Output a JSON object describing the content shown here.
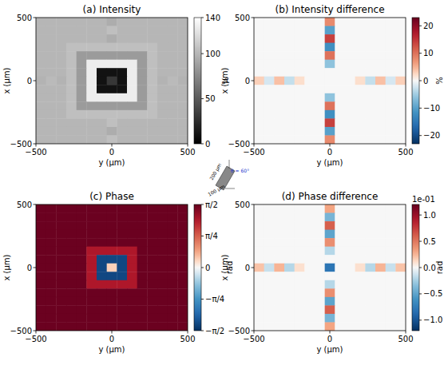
{
  "chart_data": [
    {
      "type": "heatmap",
      "title": "(a) Intensity",
      "x_label": "y (µm)",
      "y_label": "x (µm)",
      "xlim": [
        -500,
        500
      ],
      "ylim": [
        -500,
        500
      ],
      "xticks": [
        {
          "value": -500,
          "label": "−500"
        },
        0,
        500
      ],
      "yticks": [
        {
          "value": -500,
          "label": "−500"
        },
        0,
        500
      ],
      "color": "gray",
      "cells": [
        [
          100,
          100,
          100,
          100,
          100,
          100,
          100,
          95,
          100,
          100,
          100,
          100,
          100,
          100,
          100
        ],
        [
          100,
          100,
          100,
          100,
          100,
          100,
          100,
          105,
          100,
          100,
          100,
          100,
          100,
          100,
          100
        ],
        [
          100,
          100,
          100,
          100,
          100,
          100,
          100,
          95,
          100,
          100,
          100,
          100,
          100,
          100,
          100
        ],
        [
          100,
          100,
          100,
          105,
          105,
          105,
          105,
          105,
          105,
          105,
          105,
          105,
          100,
          100,
          100
        ],
        [
          100,
          100,
          100,
          105,
          85,
          85,
          85,
          85,
          85,
          85,
          85,
          105,
          100,
          100,
          100
        ],
        [
          100,
          100,
          100,
          105,
          85,
          130,
          130,
          130,
          130,
          130,
          85,
          105,
          100,
          100,
          100
        ],
        [
          100,
          100,
          100,
          105,
          85,
          130,
          10,
          10,
          10,
          130,
          85,
          105,
          100,
          100,
          100
        ],
        [
          98,
          102,
          98,
          105,
          85,
          130,
          10,
          30,
          10,
          130,
          85,
          105,
          98,
          102,
          98
        ],
        [
          100,
          100,
          100,
          105,
          85,
          130,
          10,
          10,
          10,
          130,
          85,
          105,
          100,
          100,
          100
        ],
        [
          100,
          100,
          100,
          105,
          85,
          130,
          130,
          130,
          130,
          130,
          85,
          105,
          100,
          100,
          100
        ],
        [
          100,
          100,
          100,
          105,
          85,
          85,
          85,
          85,
          85,
          85,
          85,
          105,
          100,
          100,
          100
        ],
        [
          100,
          100,
          100,
          105,
          105,
          105,
          105,
          105,
          105,
          105,
          105,
          105,
          100,
          100,
          100
        ],
        [
          100,
          100,
          100,
          100,
          100,
          100,
          100,
          105,
          100,
          100,
          100,
          100,
          100,
          100,
          100
        ],
        [
          100,
          100,
          100,
          100,
          100,
          100,
          100,
          95,
          100,
          100,
          100,
          100,
          100,
          100,
          100
        ],
        [
          100,
          100,
          100,
          100,
          100,
          100,
          100,
          105,
          100,
          100,
          100,
          100,
          100,
          100,
          100
        ]
      ],
      "colorbar": {
        "label": "%",
        "range": [
          0,
          140
        ],
        "ticks": [
          0,
          50,
          100,
          140
        ]
      }
    },
    {
      "type": "heatmap",
      "title": "(b) Intensity difference",
      "x_label": "y (µm)",
      "y_label": "x (µm)",
      "xlim": [
        -500,
        500
      ],
      "ylim": [
        -500,
        500
      ],
      "xticks": [
        {
          "value": -500,
          "label": "−500"
        },
        0,
        500
      ],
      "yticks": [
        {
          "value": -500,
          "label": "−500"
        },
        0,
        500
      ],
      "color": "RdBu_r",
      "cells": [
        [
          0,
          0,
          0,
          0,
          0,
          0,
          0,
          8,
          0,
          0,
          0,
          0,
          0,
          0,
          0
        ],
        [
          0,
          0,
          0,
          0,
          0,
          0,
          0,
          -10,
          0,
          0,
          0,
          0,
          0,
          0,
          0
        ],
        [
          0,
          0,
          0,
          0,
          0,
          0,
          0,
          14,
          0,
          0,
          0,
          0,
          0,
          0,
          0
        ],
        [
          0,
          0,
          0,
          0,
          0,
          0,
          0,
          -12,
          0,
          0,
          0,
          0,
          0,
          0,
          0
        ],
        [
          0,
          0,
          0,
          0,
          0,
          0,
          0,
          10,
          0,
          0,
          0,
          0,
          0,
          0,
          0
        ],
        [
          0,
          0,
          0,
          0,
          0,
          0,
          0,
          -6,
          0,
          0,
          0,
          0,
          0,
          0,
          0
        ],
        [
          0,
          0,
          0,
          0,
          0,
          0,
          0,
          0,
          0,
          0,
          0,
          0,
          0,
          0,
          0
        ],
        [
          3,
          -2,
          4,
          -3,
          2,
          0,
          0,
          0,
          0,
          0,
          2,
          -3,
          4,
          -2,
          3
        ],
        [
          0,
          0,
          0,
          0,
          0,
          0,
          0,
          0,
          0,
          0,
          0,
          0,
          0,
          0,
          0
        ],
        [
          0,
          0,
          0,
          0,
          0,
          0,
          0,
          -6,
          0,
          0,
          0,
          0,
          0,
          0,
          0
        ],
        [
          0,
          0,
          0,
          0,
          0,
          0,
          0,
          10,
          0,
          0,
          0,
          0,
          0,
          0,
          0
        ],
        [
          0,
          0,
          0,
          0,
          0,
          0,
          0,
          -12,
          0,
          0,
          0,
          0,
          0,
          0,
          0
        ],
        [
          0,
          0,
          0,
          0,
          0,
          0,
          0,
          14,
          0,
          0,
          0,
          0,
          0,
          0,
          0
        ],
        [
          0,
          0,
          0,
          0,
          0,
          0,
          0,
          -10,
          0,
          0,
          0,
          0,
          0,
          0,
          0
        ],
        [
          0,
          0,
          0,
          0,
          0,
          0,
          0,
          8,
          0,
          0,
          0,
          0,
          0,
          0,
          0
        ]
      ],
      "colorbar": {
        "label": "%",
        "range": [
          -23,
          23
        ],
        "ticks": [
          {
            "value": -20,
            "label": "−20"
          },
          {
            "value": -10,
            "label": "−10"
          },
          0,
          10,
          20
        ]
      }
    },
    {
      "type": "heatmap",
      "title": "(c) Phase",
      "x_label": "y (µm)",
      "y_label": "x (µm)",
      "xlim": [
        -500,
        500
      ],
      "ylim": [
        -500,
        500
      ],
      "xticks": [
        {
          "value": -500,
          "label": "−500"
        },
        0,
        500
      ],
      "yticks": [
        {
          "value": -500,
          "label": "−500"
        },
        0,
        500
      ],
      "color": "RdBu_r",
      "cells": [
        [
          1.55,
          1.55,
          1.55,
          1.55,
          1.55,
          1.55,
          1.55,
          1.55,
          1.55,
          1.55,
          1.55,
          1.55,
          1.55,
          1.55,
          1.55
        ],
        [
          1.55,
          1.55,
          1.55,
          1.55,
          1.55,
          1.55,
          1.55,
          1.55,
          1.55,
          1.55,
          1.55,
          1.55,
          1.55,
          1.55,
          1.55
        ],
        [
          1.55,
          1.55,
          1.55,
          1.55,
          1.55,
          1.55,
          1.55,
          1.55,
          1.55,
          1.55,
          1.55,
          1.55,
          1.55,
          1.55,
          1.55
        ],
        [
          1.55,
          1.55,
          1.55,
          1.55,
          1.55,
          1.55,
          1.55,
          1.55,
          1.55,
          1.55,
          1.55,
          1.55,
          1.55,
          1.55,
          1.55
        ],
        [
          1.55,
          1.55,
          1.55,
          1.55,
          1.55,
          1.55,
          1.55,
          1.55,
          1.55,
          1.55,
          1.55,
          1.55,
          1.55,
          1.55,
          1.55
        ],
        [
          1.55,
          1.55,
          1.55,
          1.55,
          1.55,
          1.2,
          1.2,
          1.2,
          1.2,
          1.2,
          1.55,
          1.55,
          1.55,
          1.55,
          1.55
        ],
        [
          1.55,
          1.55,
          1.55,
          1.55,
          1.55,
          1.2,
          -1.4,
          -1.4,
          -1.4,
          1.2,
          1.55,
          1.55,
          1.55,
          1.55,
          1.55
        ],
        [
          1.55,
          1.55,
          1.55,
          1.55,
          1.55,
          1.2,
          -1.4,
          0.2,
          -1.4,
          1.2,
          1.55,
          1.55,
          1.55,
          1.55,
          1.55
        ],
        [
          1.55,
          1.55,
          1.55,
          1.55,
          1.55,
          1.2,
          -1.4,
          -1.4,
          -1.4,
          1.2,
          1.55,
          1.55,
          1.55,
          1.55,
          1.55
        ],
        [
          1.55,
          1.55,
          1.55,
          1.55,
          1.55,
          1.2,
          1.2,
          1.2,
          1.2,
          1.2,
          1.55,
          1.55,
          1.55,
          1.55,
          1.55
        ],
        [
          1.55,
          1.55,
          1.55,
          1.55,
          1.55,
          1.55,
          1.55,
          1.55,
          1.55,
          1.55,
          1.55,
          1.55,
          1.55,
          1.55,
          1.55
        ],
        [
          1.55,
          1.55,
          1.55,
          1.55,
          1.55,
          1.55,
          1.55,
          1.55,
          1.55,
          1.55,
          1.55,
          1.55,
          1.55,
          1.55,
          1.55
        ],
        [
          1.55,
          1.55,
          1.55,
          1.55,
          1.55,
          1.55,
          1.55,
          1.55,
          1.55,
          1.55,
          1.55,
          1.55,
          1.55,
          1.55,
          1.55
        ],
        [
          1.55,
          1.55,
          1.55,
          1.55,
          1.55,
          1.55,
          1.55,
          1.55,
          1.55,
          1.55,
          1.55,
          1.55,
          1.55,
          1.55,
          1.55
        ],
        [
          1.55,
          1.55,
          1.55,
          1.55,
          1.55,
          1.55,
          1.55,
          1.55,
          1.55,
          1.55,
          1.55,
          1.55,
          1.55,
          1.55,
          1.55
        ]
      ],
      "colorbar": {
        "label": "rad",
        "range": [
          -1.5708,
          1.5708
        ],
        "ticks": [
          {
            "value": -1.5708,
            "label": "−π/2"
          },
          {
            "value": -0.7854,
            "label": "−π/4"
          },
          0,
          {
            "value": 0.7854,
            "label": "π/4"
          },
          {
            "value": 1.5708,
            "label": "π/2"
          }
        ]
      }
    },
    {
      "type": "heatmap",
      "title": "(d) Phase difference",
      "x_label": "y (µm)",
      "y_label": "x (µm)",
      "xlim": [
        -500,
        500
      ],
      "ylim": [
        -500,
        500
      ],
      "xticks": [
        {
          "value": -500,
          "label": "−500"
        },
        0,
        500
      ],
      "yticks": [
        {
          "value": -500,
          "label": "−500"
        },
        0,
        500
      ],
      "color": "RdBu_r",
      "cells": [
        [
          0,
          0,
          0,
          0,
          0,
          0,
          0,
          0.3,
          0,
          0,
          0,
          0,
          0,
          0,
          0
        ],
        [
          0,
          0,
          0,
          0,
          0,
          0,
          0,
          -0.4,
          0,
          0,
          0,
          0,
          0,
          0,
          0
        ],
        [
          0,
          0,
          0,
          0,
          0,
          0,
          0,
          0.6,
          0,
          0,
          0,
          0,
          0,
          0,
          0
        ],
        [
          0,
          0,
          0,
          0,
          0,
          0,
          0,
          -0.5,
          0,
          0,
          0,
          0,
          0,
          0,
          0
        ],
        [
          0,
          0,
          0,
          0,
          0,
          0,
          0,
          0.4,
          0,
          0,
          0,
          0,
          0,
          0,
          0
        ],
        [
          0,
          0,
          0,
          0,
          0,
          0,
          0,
          -0.2,
          0,
          0,
          0,
          0,
          0,
          0,
          0
        ],
        [
          0,
          0,
          0,
          0,
          0,
          0,
          0,
          0,
          0,
          0,
          0,
          0,
          0,
          0,
          0
        ],
        [
          0.2,
          -0.15,
          0.25,
          -0.2,
          0.1,
          0,
          0,
          -0.8,
          0,
          0,
          0.1,
          -0.2,
          0.25,
          -0.15,
          0.2
        ],
        [
          0,
          0,
          0,
          0,
          0,
          0,
          0,
          0,
          0,
          0,
          0,
          0,
          0,
          0,
          0
        ],
        [
          0,
          0,
          0,
          0,
          0,
          0,
          0,
          -0.2,
          0,
          0,
          0,
          0,
          0,
          0,
          0
        ],
        [
          0,
          0,
          0,
          0,
          0,
          0,
          0,
          0.4,
          0,
          0,
          0,
          0,
          0,
          0,
          0
        ],
        [
          0,
          0,
          0,
          0,
          0,
          0,
          0,
          -0.5,
          0,
          0,
          0,
          0,
          0,
          0,
          0
        ],
        [
          0,
          0,
          0,
          0,
          0,
          0,
          0,
          0.6,
          0,
          0,
          0,
          0,
          0,
          0,
          0
        ],
        [
          0,
          0,
          0,
          0,
          0,
          0,
          0,
          -0.4,
          0,
          0,
          0,
          0,
          0,
          0,
          0
        ],
        [
          0,
          0,
          0,
          0,
          0,
          0,
          0,
          0.3,
          0,
          0,
          0,
          0,
          0,
          0,
          0
        ]
      ],
      "colorbar": {
        "label": "rad",
        "offset_label": "1e-01",
        "range": [
          -1.2,
          1.2
        ],
        "ticks": [
          {
            "value": -1,
            "label": "−1.0"
          },
          {
            "value": -0.5,
            "label": "−0.5"
          },
          {
            "value": 0,
            "label": "0.0"
          },
          {
            "value": 0.5,
            "label": "0.5"
          },
          {
            "value": 1,
            "label": "1.0"
          }
        ]
      }
    }
  ],
  "inset": {
    "labels": [
      "200 µm",
      "100 µm",
      "θ = 60°"
    ]
  }
}
